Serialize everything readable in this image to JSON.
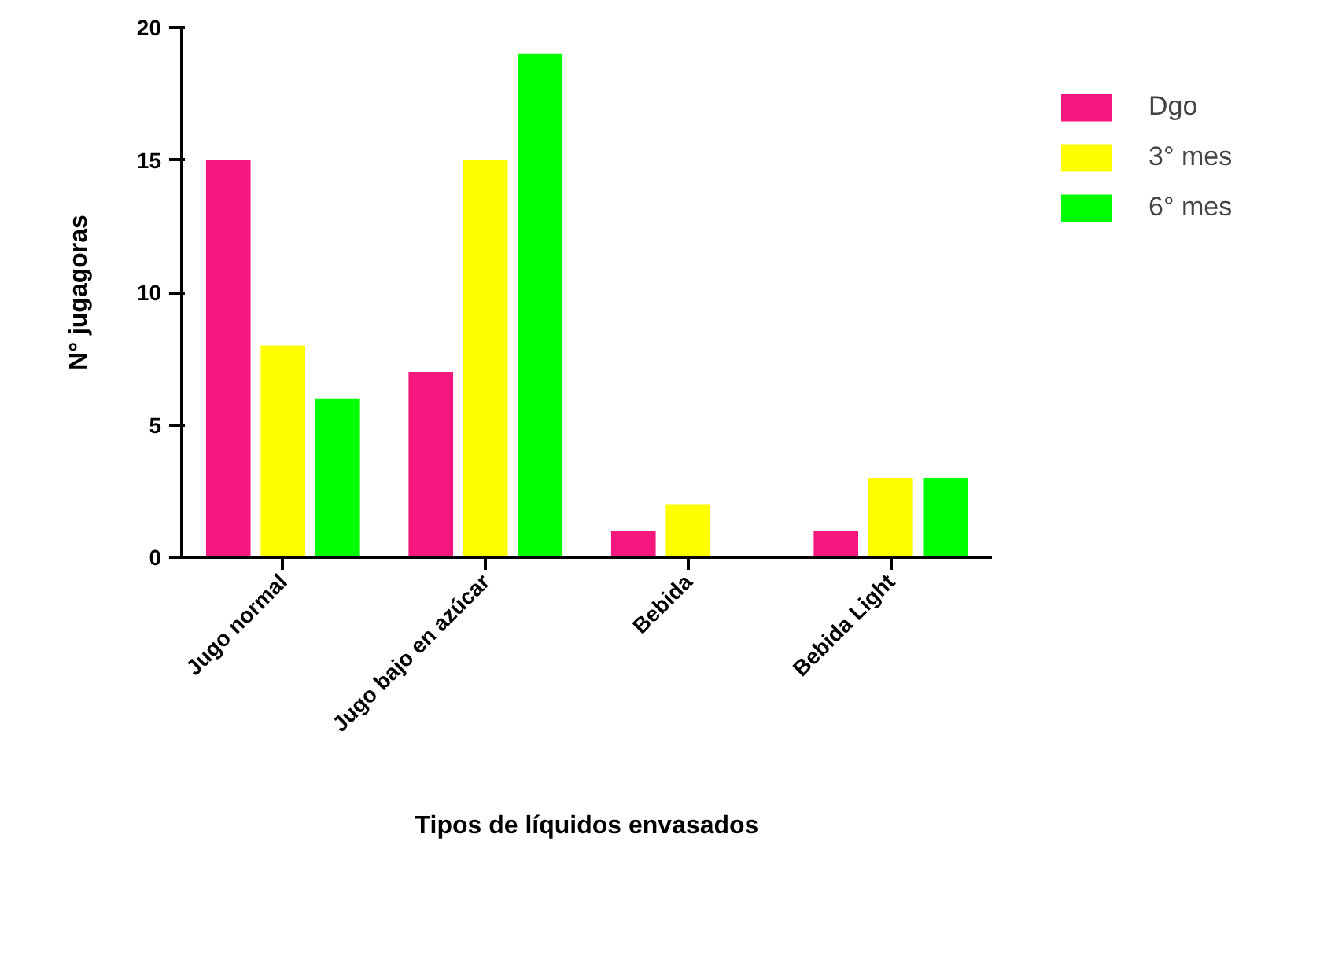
{
  "chart_data": {
    "type": "bar",
    "xlabel": "Tipos de líquidos envasados",
    "ylabel": "N° jugagoras",
    "categories": [
      "Jugo normal",
      "Jugo bajo en azúcar",
      "Bebida",
      "Bebida Light"
    ],
    "series": [
      {
        "name": "Dgo",
        "color": "#f5177d",
        "values": [
          15,
          7,
          1,
          1
        ]
      },
      {
        "name": "3° mes",
        "color": "#ffff00",
        "values": [
          8,
          15,
          2,
          3
        ]
      },
      {
        "name": "6° mes",
        "color": "#00ff00",
        "values": [
          6,
          19,
          0,
          3
        ]
      }
    ],
    "ylim": [
      0,
      20
    ],
    "yticks": [
      0,
      5,
      10,
      15,
      20
    ],
    "grid": false,
    "legend": "top right"
  }
}
